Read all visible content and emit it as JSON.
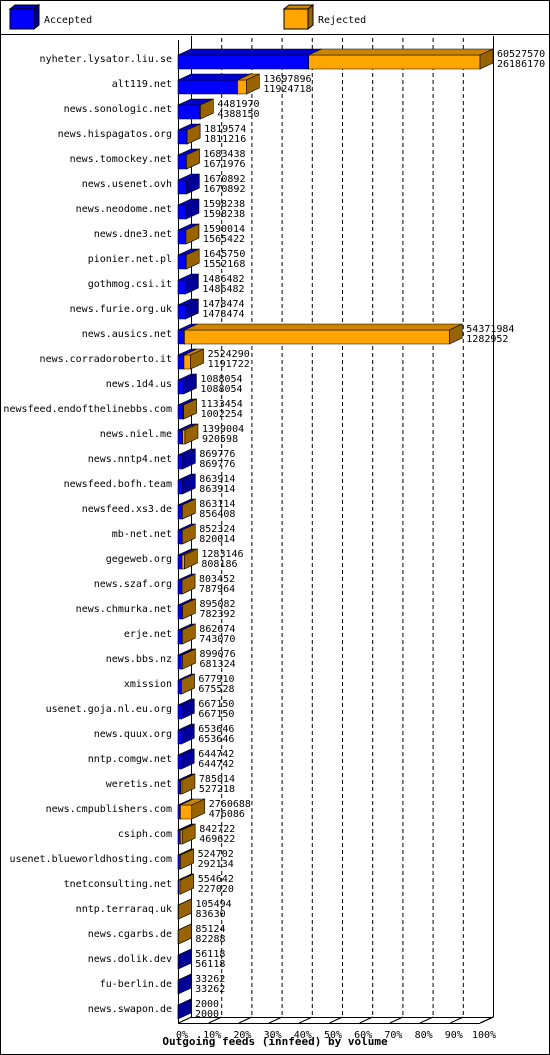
{
  "chart_data": {
    "type": "bar3d",
    "title": "Outgoing feeds (innfeed) by volume",
    "categories": [
      "nyheter.lysator.liu.se",
      "alt119.net",
      "news.sonologic.net",
      "news.hispagatos.org",
      "news.tomockey.net",
      "news.usenet.ovh",
      "news.neodome.net",
      "news.dne3.net",
      "pionier.net.pl",
      "gothmog.csi.it",
      "news.furie.org.uk",
      "news.ausics.net",
      "news.corradoroberto.it",
      "news.1d4.us",
      "newsfeed.endofthelinebbs.com",
      "news.niel.me",
      "news.nntp4.net",
      "newsfeed.bofh.team",
      "newsfeed.xs3.de",
      "mb-net.net",
      "gegeweb.org",
      "news.szaf.org",
      "news.chmurka.net",
      "erje.net",
      "news.bbs.nz",
      "xmission",
      "usenet.goja.nl.eu.org",
      "news.quux.org",
      "nntp.comgw.net",
      "weretis.net",
      "news.cmpublishers.com",
      "csiph.com",
      "usenet.blueworldhosting.com",
      "tnetconsulting.net",
      "nntp.terraraq.uk",
      "news.cgarbs.de",
      "news.dolik.dev",
      "fu-berlin.de",
      "news.swapon.de"
    ],
    "offered": [
      60527570,
      13697896,
      4481970,
      1819574,
      1683438,
      1670892,
      1598238,
      1590014,
      1645750,
      1486482,
      1478474,
      54371984,
      2524290,
      1088054,
      1133454,
      1399004,
      869776,
      863914,
      863114,
      852324,
      1283146,
      803452,
      895082,
      862674,
      899076,
      677910,
      667150,
      653646,
      644742,
      785014,
      2760688,
      842722,
      524702,
      554642,
      105494,
      85124,
      56118,
      33262,
      2000
    ],
    "series": [
      {
        "name": "Accepted",
        "color": "#0000ff",
        "values": [
          26186170,
          11924718,
          4388150,
          1811216,
          1671976,
          1670892,
          1598238,
          1565422,
          1552168,
          1486482,
          1478474,
          1282952,
          1191722,
          1088054,
          1002254,
          920598,
          869776,
          863914,
          856408,
          820014,
          808186,
          787964,
          782392,
          743070,
          681324,
          675528,
          667150,
          653646,
          644742,
          527218,
          476086,
          469622,
          292134,
          227020,
          83630,
          82288,
          56118,
          33262,
          2000
        ]
      },
      {
        "name": "Rejected",
        "color": "#ffa500"
      }
    ],
    "xlim": [
      0,
      100
    ],
    "xticks": [
      {
        "value": 0,
        "label": "0%"
      },
      {
        "value": 10,
        "label": "10%"
      },
      {
        "value": 20,
        "label": "20%"
      },
      {
        "value": 30,
        "label": "30%"
      },
      {
        "value": 40,
        "label": "40%"
      },
      {
        "value": 50,
        "label": "50%"
      },
      {
        "value": 60,
        "label": "60%"
      },
      {
        "value": 70,
        "label": "70%"
      },
      {
        "value": 80,
        "label": "80%"
      },
      {
        "value": 90,
        "label": "90%"
      },
      {
        "value": 100,
        "label": "100%"
      }
    ],
    "grid": true
  }
}
